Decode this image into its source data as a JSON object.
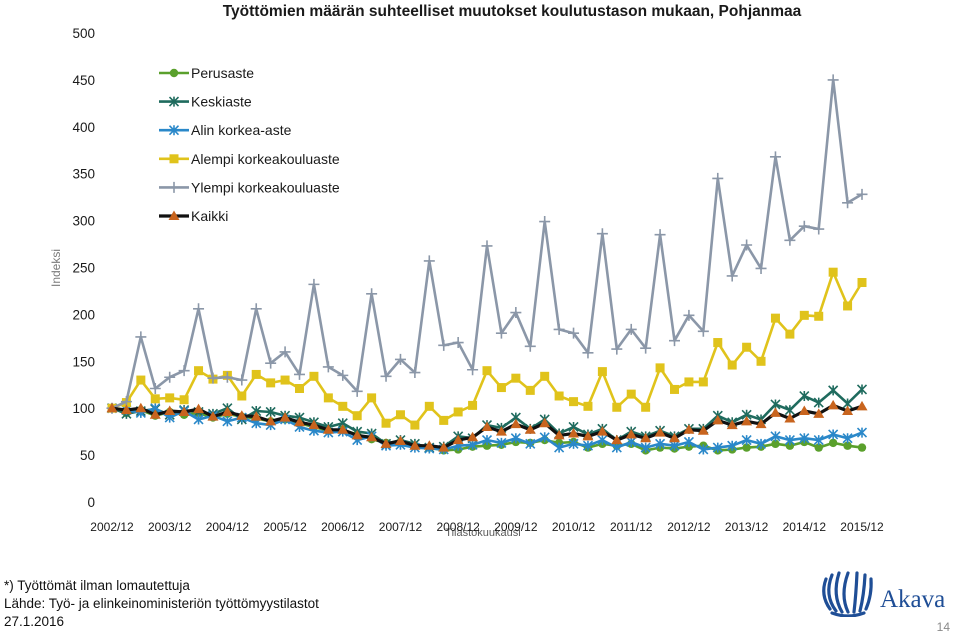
{
  "chart_data": {
    "type": "line",
    "title": "Työttömien määrän suhteelliset muutokset koulutustason mukaan, Pohjanmaa",
    "ylabel": "Indeksi",
    "xlabel": "Tilastokuukausi",
    "ylim": [
      0,
      500
    ],
    "yticks": [
      0,
      50,
      100,
      150,
      200,
      250,
      300,
      350,
      400,
      450,
      500
    ],
    "grid": false,
    "legend_position": "top-left",
    "x": [
      "2002/12",
      "2003/03",
      "2003/06",
      "2003/09",
      "2003/12",
      "2004/03",
      "2004/06",
      "2004/09",
      "2004/12",
      "2005/03",
      "2005/06",
      "2005/09",
      "2005/12",
      "2006/03",
      "2006/06",
      "2006/09",
      "2006/12",
      "2007/03",
      "2007/06",
      "2007/09",
      "2007/12",
      "2008/03",
      "2008/06",
      "2008/09",
      "2008/12",
      "2009/03",
      "2009/06",
      "2009/09",
      "2009/12",
      "2010/03",
      "2010/06",
      "2010/09",
      "2010/12",
      "2011/03",
      "2011/06",
      "2011/09",
      "2011/12",
      "2012/03",
      "2012/06",
      "2012/09",
      "2012/12",
      "2013/03",
      "2013/06",
      "2013/09",
      "2013/12",
      "2014/03",
      "2014/06",
      "2014/09",
      "2014/12",
      "2015/03",
      "2015/06",
      "2015/09",
      "2015/12"
    ],
    "xtick_labels": [
      "2002/12",
      "2003/12",
      "2004/12",
      "2005/12",
      "2006/12",
      "2007/12",
      "2008/12",
      "2009/12",
      "2010/12",
      "2011/12",
      "2012/12",
      "2013/12",
      "2014/12",
      "2015/12"
    ],
    "series": [
      {
        "name": "Perusaste",
        "color": "#5aa02c",
        "marker": "circle",
        "values": [
          100,
          95,
          98,
          92,
          96,
          93,
          95,
          90,
          94,
          91,
          89,
          86,
          88,
          84,
          80,
          76,
          77,
          72,
          67,
          63,
          64,
          60,
          58,
          55,
          56,
          59,
          60,
          61,
          64,
          63,
          66,
          63,
          64,
          58,
          62,
          60,
          62,
          55,
          58,
          57,
          59,
          60,
          55,
          56,
          58,
          59,
          62,
          60,
          64,
          58,
          63,
          60,
          58
        ]
      },
      {
        "name": "Keskiaste",
        "color": "#1f6b5e",
        "marker": "x",
        "values": [
          100,
          94,
          97,
          99,
          93,
          98,
          96,
          94,
          100,
          88,
          97,
          96,
          92,
          90,
          85,
          80,
          84,
          75,
          73,
          62,
          66,
          62,
          58,
          59,
          70,
          68,
          82,
          79,
          90,
          78,
          88,
          73,
          80,
          72,
          78,
          66,
          75,
          70,
          76,
          70,
          78,
          78,
          92,
          85,
          93,
          88,
          104,
          98,
          113,
          106,
          119,
          105,
          120
        ]
      },
      {
        "name": "Alin korkea-aste",
        "color": "#2a88c9",
        "marker": "x",
        "values": [
          100,
          98,
          95,
          100,
          90,
          97,
          88,
          92,
          86,
          90,
          84,
          82,
          88,
          80,
          76,
          74,
          75,
          66,
          70,
          60,
          61,
          58,
          57,
          56,
          60,
          61,
          66,
          63,
          68,
          62,
          69,
          58,
          62,
          60,
          66,
          58,
          64,
          58,
          62,
          60,
          64,
          56,
          58,
          60,
          66,
          62,
          70,
          66,
          68,
          66,
          72,
          68,
          74
        ]
      },
      {
        "name": "Alempi korkeakouluaste",
        "color": "#e0c31b",
        "marker": "square",
        "values": [
          100,
          106,
          130,
          110,
          111,
          109,
          140,
          131,
          135,
          113,
          136,
          127,
          130,
          121,
          134,
          111,
          102,
          92,
          111,
          84,
          93,
          82,
          102,
          87,
          96,
          103,
          140,
          122,
          132,
          119,
          134,
          113,
          107,
          102,
          139,
          101,
          115,
          101,
          143,
          120,
          128,
          128,
          170,
          146,
          165,
          150,
          196,
          179,
          199,
          198,
          245,
          209,
          234
        ]
      },
      {
        "name": "Ylempi korkeakouluaste",
        "color": "#8b97a8",
        "marker": "plus",
        "values": [
          100,
          107,
          176,
          121,
          133,
          140,
          206,
          132,
          133,
          130,
          206,
          148,
          160,
          136,
          232,
          144,
          135,
          118,
          222,
          134,
          152,
          138,
          257,
          167,
          170,
          141,
          273,
          180,
          202,
          166,
          299,
          184,
          180,
          159,
          286,
          163,
          184,
          164,
          285,
          172,
          199,
          182,
          345,
          241,
          274,
          249,
          368,
          279,
          294,
          291,
          450,
          319,
          328
        ]
      },
      {
        "name": "Kaikki",
        "color": "#111111",
        "marker_color": "#c8641e",
        "marker": "triangle",
        "values": [
          100,
          98,
          100,
          93,
          97,
          96,
          99,
          91,
          96,
          92,
          91,
          86,
          90,
          85,
          82,
          77,
          77,
          71,
          69,
          62,
          65,
          60,
          60,
          58,
          66,
          69,
          80,
          75,
          83,
          77,
          84,
          71,
          73,
          70,
          75,
          66,
          72,
          68,
          74,
          68,
          77,
          76,
          87,
          82,
          86,
          83,
          95,
          89,
          97,
          94,
          103,
          97,
          102
        ]
      }
    ]
  },
  "footer": {
    "note": "*) Työttömät ilman lomautettuja",
    "source": "Lähde: Työ- ja elinkeinoministeriön työttömyystilastot",
    "date": "27.1.2016"
  },
  "logo": {
    "text": "Akava",
    "color": "#1f4e96"
  },
  "page_number": "14"
}
